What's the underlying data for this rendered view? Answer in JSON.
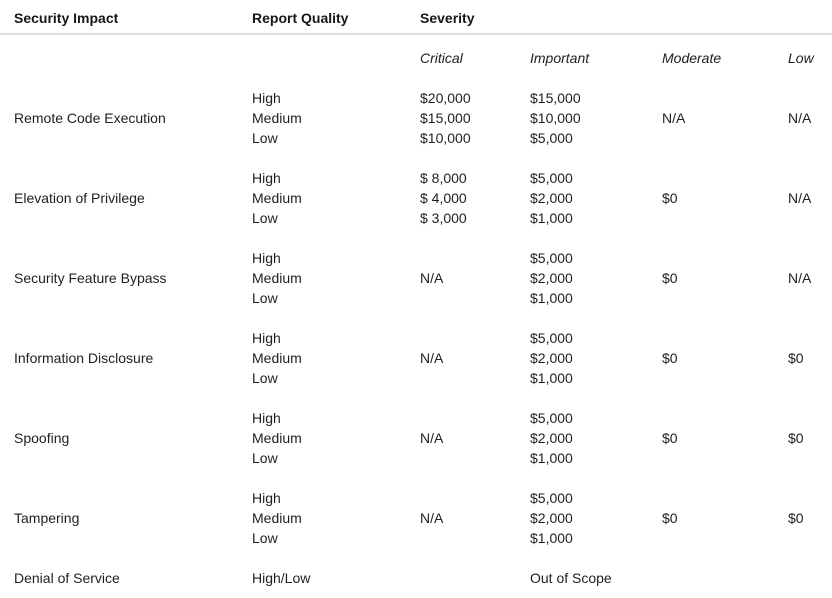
{
  "header": {
    "security_impact": "Security Impact",
    "report_quality": "Report Quality",
    "severity": "Severity"
  },
  "severity_levels": {
    "critical": "Critical",
    "important": "Important",
    "moderate": "Moderate",
    "low": "Low"
  },
  "rows": [
    {
      "impact": "Remote Code Execution",
      "quality": [
        "High",
        "Medium",
        "Low"
      ],
      "critical": [
        "$20,000",
        "$15,000",
        "$10,000"
      ],
      "important": [
        "$15,000",
        "$10,000",
        "$5,000"
      ],
      "moderate": "N/A",
      "low": "N/A"
    },
    {
      "impact": "Elevation of Privilege",
      "quality": [
        "High",
        "Medium",
        "Low"
      ],
      "critical": [
        "$ 8,000",
        "$ 4,000",
        "$ 3,000"
      ],
      "important": [
        "$5,000",
        "$2,000",
        "$1,000"
      ],
      "moderate": "$0",
      "low": "N/A"
    },
    {
      "impact": "Security Feature Bypass",
      "quality": [
        "High",
        "Medium",
        "Low"
      ],
      "critical": "N/A",
      "important": [
        "$5,000",
        "$2,000",
        "$1,000"
      ],
      "moderate": "$0",
      "low": "N/A"
    },
    {
      "impact": "Information Disclosure",
      "quality": [
        "High",
        "Medium",
        "Low"
      ],
      "critical": "N/A",
      "important": [
        "$5,000",
        "$2,000",
        "$1,000"
      ],
      "moderate": "$0",
      "low": "$0"
    },
    {
      "impact": "Spoofing",
      "quality": [
        "High",
        "Medium",
        "Low"
      ],
      "critical": "N/A",
      "important": [
        "$5,000",
        "$2,000",
        "$1,000"
      ],
      "moderate": "$0",
      "low": "$0"
    },
    {
      "impact": "Tampering",
      "quality": [
        "High",
        "Medium",
        "Low"
      ],
      "critical": "N/A",
      "important": [
        "$5,000",
        "$2,000",
        "$1,000"
      ],
      "moderate": "$0",
      "low": "$0"
    },
    {
      "impact": "Denial of Service",
      "quality": "High/Low",
      "important": "Out of Scope"
    }
  ]
}
